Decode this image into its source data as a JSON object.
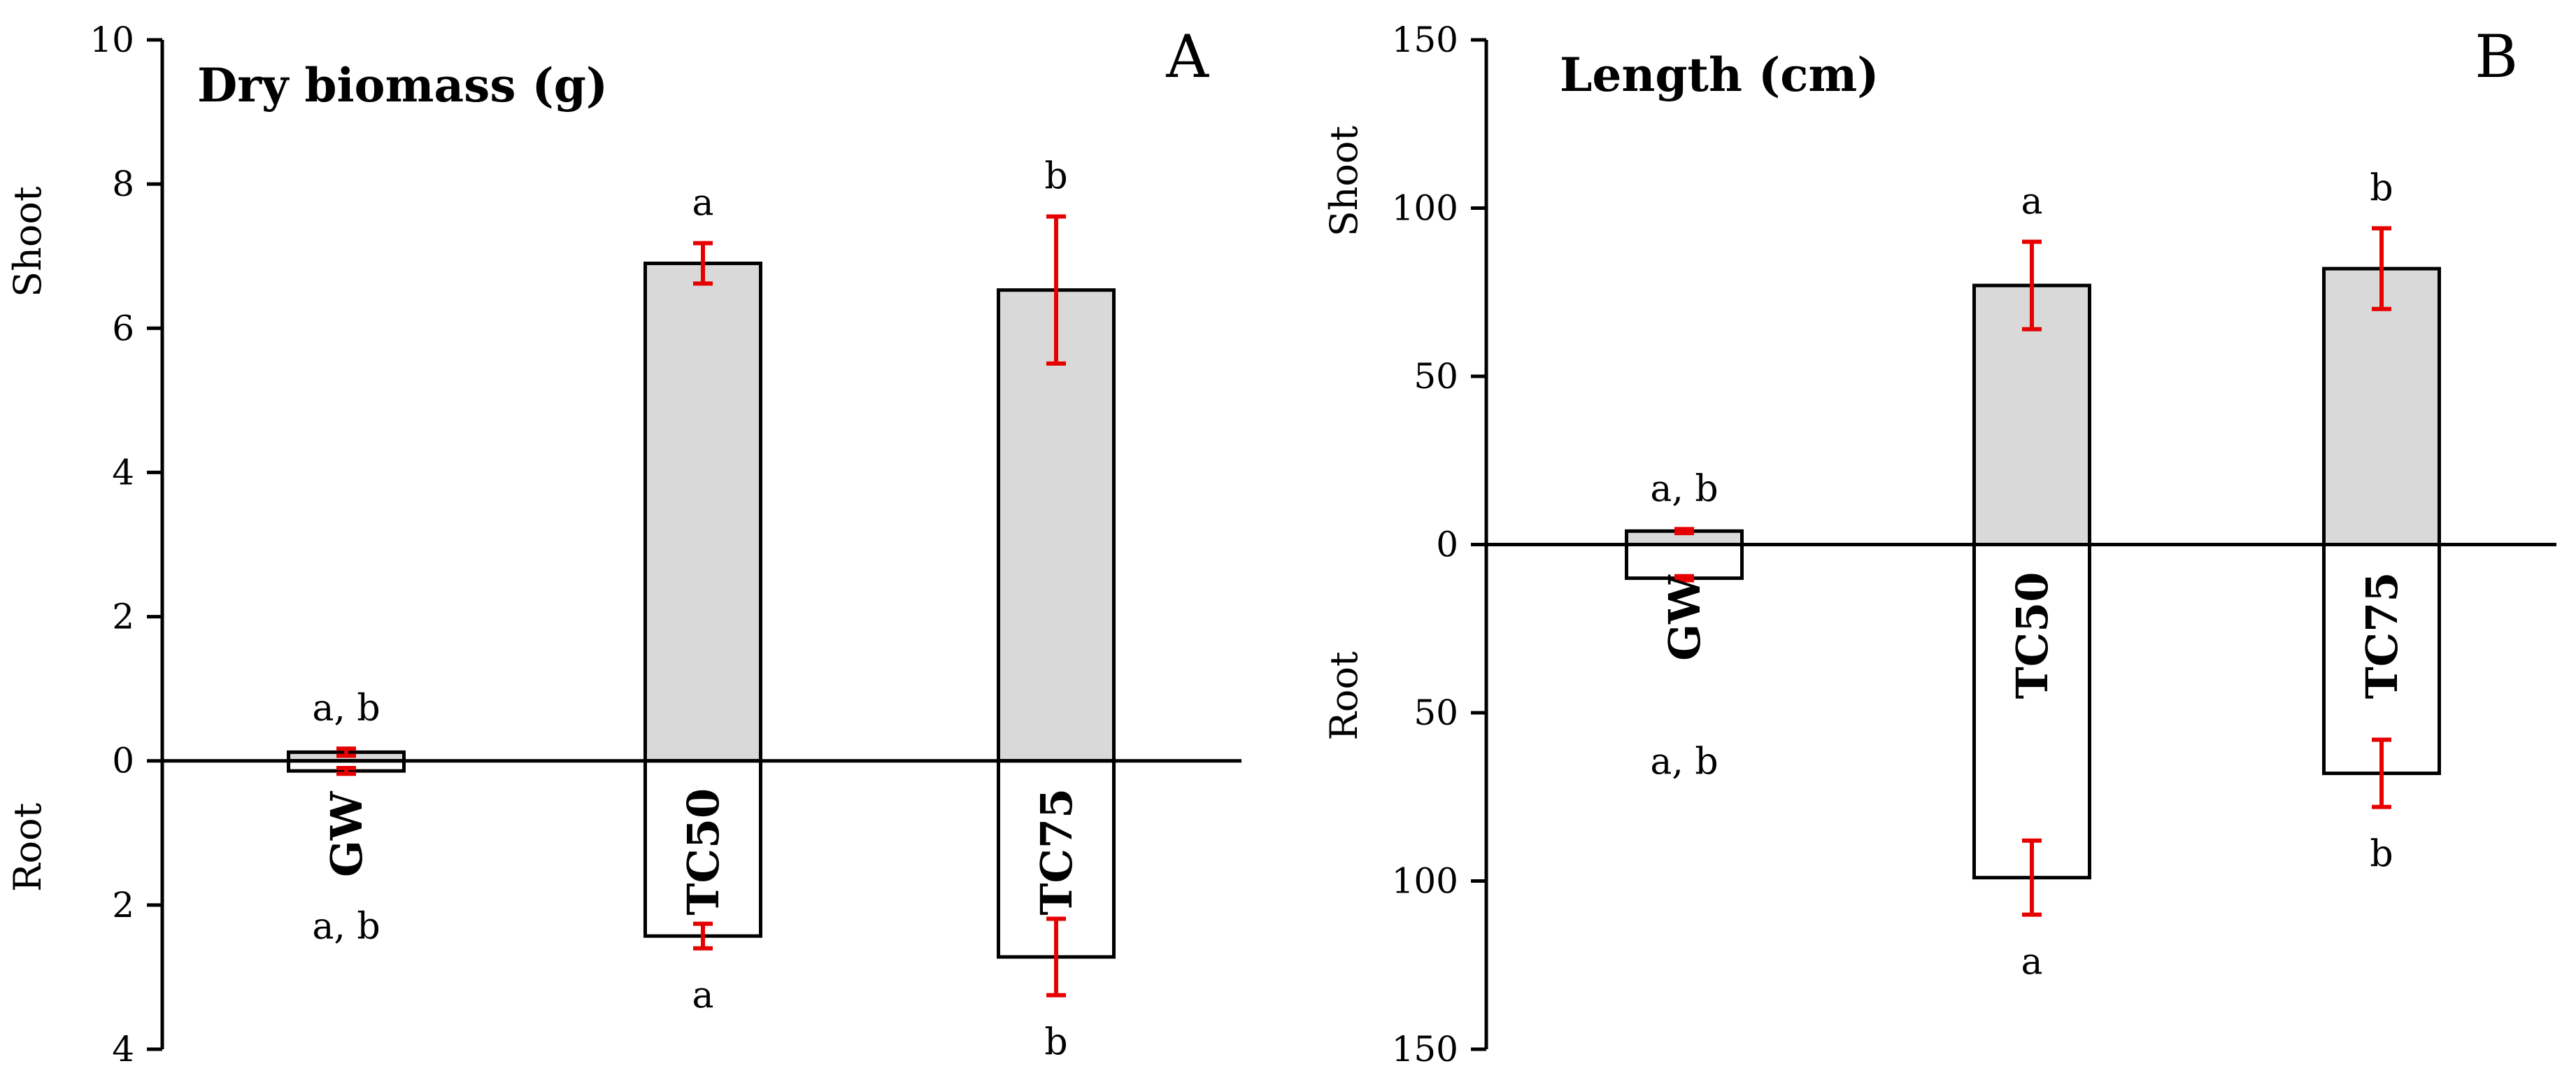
{
  "chart_data": [
    {
      "type": "bar",
      "panel_letter": "A",
      "title": "Dry biomass (g)",
      "categories": [
        "GW",
        "TC50",
        "TC75"
      ],
      "upper_label": "Shoot",
      "lower_label": "Root",
      "series": [
        {
          "name": "Shoot",
          "values": [
            0.12,
            6.9,
            6.53
          ],
          "errors": [
            0.05,
            0.28,
            1.02
          ],
          "fill": "#d9d9d9"
        },
        {
          "name": "Root",
          "values": [
            0.14,
            2.43,
            2.72
          ],
          "errors": [
            0.04,
            0.17,
            0.53
          ],
          "fill": "#ffffff"
        }
      ],
      "significance": {
        "shoot": [
          "a, b",
          "a",
          "b"
        ],
        "root": [
          "a, b",
          "a",
          "b"
        ]
      },
      "upper_ticks": [
        0,
        2,
        4,
        6,
        8,
        10
      ],
      "lower_ticks": [
        2,
        4
      ],
      "ylim": [
        -4,
        10
      ],
      "error_color": "#e60000"
    },
    {
      "type": "bar",
      "panel_letter": "B",
      "title": "Length (cm)",
      "categories": [
        "GW",
        "TC50",
        "TC75"
      ],
      "upper_label": "Shoot",
      "lower_label": "Root",
      "series": [
        {
          "name": "Shoot",
          "values": [
            4,
            77,
            82
          ],
          "errors": [
            0.6,
            13,
            12
          ],
          "fill": "#d9d9d9"
        },
        {
          "name": "Root",
          "values": [
            10,
            99,
            68
          ],
          "errors": [
            0.6,
            11,
            10
          ],
          "fill": "#ffffff"
        }
      ],
      "significance": {
        "shoot": [
          "a, b",
          "a",
          "b"
        ],
        "root": [
          "a, b",
          "a",
          "b"
        ]
      },
      "upper_ticks": [
        0,
        50,
        100,
        150
      ],
      "lower_ticks": [
        50,
        100,
        150
      ],
      "ylim": [
        -150,
        150
      ],
      "error_color": "#e60000"
    }
  ]
}
